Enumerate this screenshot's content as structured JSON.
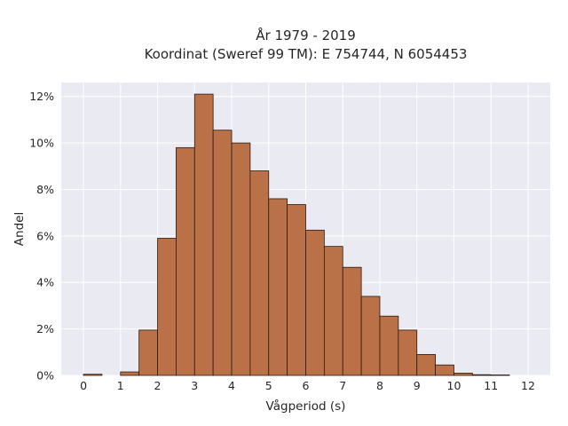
{
  "chart_data": {
    "type": "bar",
    "title_line1": "År 1979 - 2019",
    "title_line2": "Koordinat (Sweref 99 TM): E 754744, N 6054453",
    "xlabel": "Vågperiod (s)",
    "ylabel": "Andel",
    "bin_width": 0.5,
    "bins": [
      {
        "start": 0.0,
        "value": 0.05
      },
      {
        "start": 0.5,
        "value": 0.0
      },
      {
        "start": 1.0,
        "value": 0.15
      },
      {
        "start": 1.5,
        "value": 1.95
      },
      {
        "start": 2.0,
        "value": 5.9
      },
      {
        "start": 2.5,
        "value": 9.8
      },
      {
        "start": 3.0,
        "value": 12.1
      },
      {
        "start": 3.5,
        "value": 10.55
      },
      {
        "start": 4.0,
        "value": 10.0
      },
      {
        "start": 4.5,
        "value": 8.8
      },
      {
        "start": 5.0,
        "value": 7.6
      },
      {
        "start": 5.5,
        "value": 7.35
      },
      {
        "start": 6.0,
        "value": 6.25
      },
      {
        "start": 6.5,
        "value": 5.55
      },
      {
        "start": 7.0,
        "value": 4.65
      },
      {
        "start": 7.5,
        "value": 3.4
      },
      {
        "start": 8.0,
        "value": 2.55
      },
      {
        "start": 8.5,
        "value": 1.95
      },
      {
        "start": 9.0,
        "value": 0.9
      },
      {
        "start": 9.5,
        "value": 0.45
      },
      {
        "start": 10.0,
        "value": 0.1
      },
      {
        "start": 10.5,
        "value": 0.03
      },
      {
        "start": 11.0,
        "value": 0.02
      }
    ],
    "xlim": [
      -0.6,
      12.6
    ],
    "ylim": [
      0,
      12.6
    ],
    "xticks": [
      0,
      1,
      2,
      3,
      4,
      5,
      6,
      7,
      8,
      9,
      10,
      11,
      12
    ],
    "xtick_labels": [
      "0",
      "1",
      "2",
      "3",
      "4",
      "5",
      "6",
      "7",
      "8",
      "9",
      "10",
      "11",
      "12"
    ],
    "yticks": [
      0,
      2,
      4,
      6,
      8,
      10,
      12
    ],
    "ytick_labels": [
      "0%",
      "2%",
      "4%",
      "6%",
      "8%",
      "10%",
      "12%"
    ],
    "grid": true,
    "colors": {
      "bar_fill": "#bb7147",
      "bar_edge": "#2a1a10",
      "plot_background": "#eaeaf2",
      "grid": "#ffffff"
    }
  }
}
